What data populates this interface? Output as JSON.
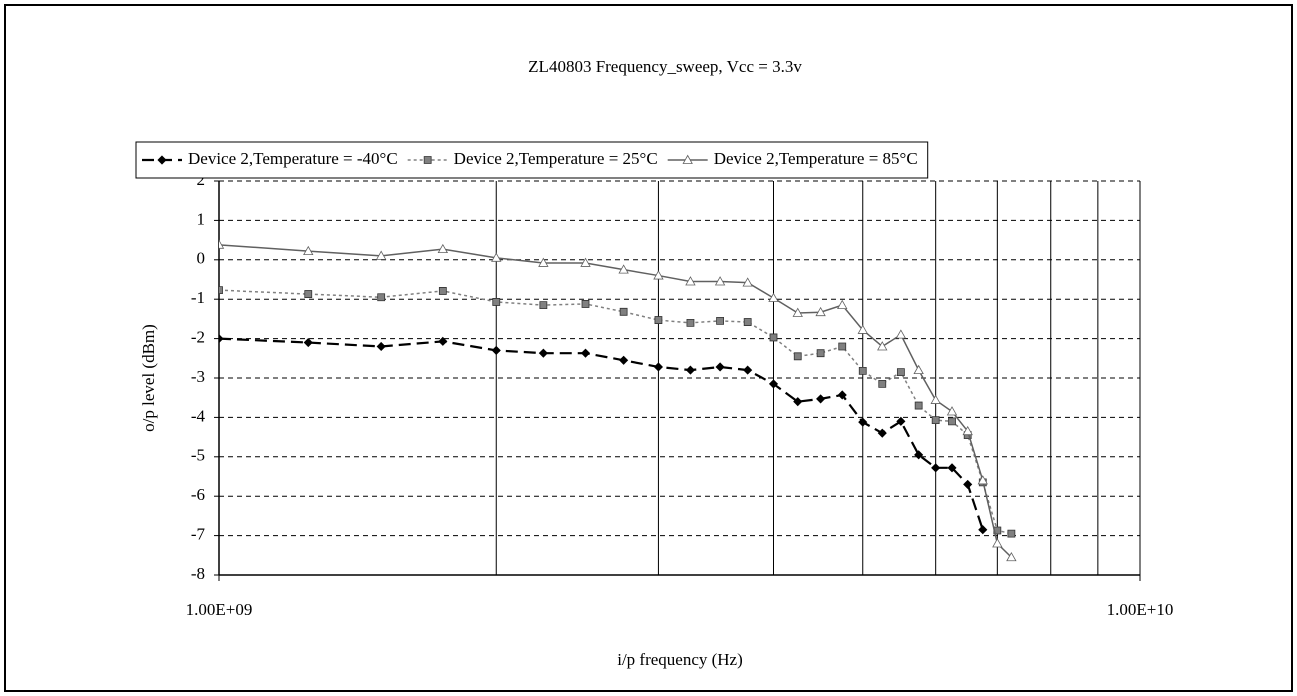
{
  "chart_data": {
    "type": "line",
    "title": "ZL40803 Frequency_sweep, Vcc = 3.3v",
    "x_label": "i/p frequency (Hz)",
    "y_label": "o/p level (dBm)",
    "x": [
      1000000000,
      1250000000,
      1500000000,
      1750000000,
      2000000000,
      2250000000,
      2500000000,
      2750000000,
      3000000000,
      3250000000,
      3500000000,
      3750000000,
      4000000000,
      4250000000,
      4500000000,
      4750000000,
      5000000000,
      5250000000,
      5500000000,
      5750000000,
      6000000000,
      6250000000,
      6500000000,
      6750000000,
      7000000000,
      7250000000
    ],
    "series": [
      {
        "name": "Device 2,Temperature = -40°C",
        "color": "#000000",
        "values": [
          -2.0,
          -2.1,
          -2.2,
          -2.07,
          -2.3,
          -2.37,
          -2.37,
          -2.55,
          -2.72,
          -2.8,
          -2.72,
          -2.8,
          -3.15,
          -3.6,
          -3.53,
          -3.43,
          -4.12,
          -4.4,
          -4.1,
          -4.95,
          -5.28,
          -5.28,
          -5.7,
          -6.85,
          null,
          null
        ]
      },
      {
        "name": "Device 2,Temperature = 25°C",
        "color": "#808080",
        "values": [
          -0.77,
          -0.87,
          -0.95,
          -0.79,
          -1.07,
          -1.15,
          -1.12,
          -1.32,
          -1.53,
          -1.6,
          -1.55,
          -1.58,
          -1.97,
          -2.45,
          -2.37,
          -2.2,
          -2.82,
          -3.15,
          -2.85,
          -3.7,
          -4.07,
          -4.1,
          -4.45,
          -5.65,
          -6.87,
          -6.95
        ]
      },
      {
        "name": "Device 2,Temperature = 85°C",
        "color": "#606060",
        "values": [
          0.38,
          0.22,
          0.1,
          0.27,
          0.05,
          -0.08,
          -0.08,
          -0.25,
          -0.4,
          -0.55,
          -0.55,
          -0.58,
          -0.97,
          -1.35,
          -1.33,
          -1.15,
          -1.78,
          -2.2,
          -1.9,
          -2.8,
          -3.56,
          -3.85,
          -4.35,
          -5.6,
          -7.2,
          -7.55
        ]
      }
    ],
    "xscale": "log",
    "xlim": [
      1000000000,
      10000000000
    ],
    "xticks": [
      {
        "value": 1000000000,
        "label": "1.00E+09"
      },
      {
        "value": 10000000000,
        "label": "1.00E+10"
      }
    ],
    "xminorticks": [
      2000000000,
      3000000000,
      4000000000,
      5000000000,
      6000000000,
      7000000000,
      8000000000,
      9000000000
    ],
    "ylim": [
      -8,
      2
    ],
    "yticks": [
      -8,
      -7,
      -6,
      -5,
      -4,
      -3,
      -2,
      -1,
      0,
      1,
      2
    ],
    "grid": true,
    "legend": "top"
  }
}
